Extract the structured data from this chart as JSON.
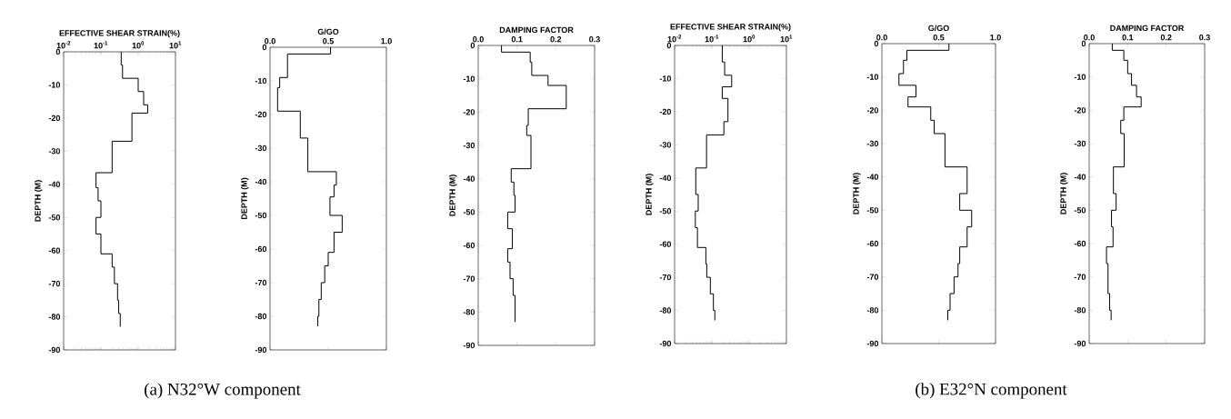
{
  "chart_data": [
    {
      "type": "line",
      "xlabel": "EFFECTIVE SHEAR STRAIN(%)",
      "ylabel": "DEPTH (M)",
      "log": "x",
      "xlim": [
        0.01,
        10
      ],
      "xticks": [
        {
          "value": 0.01,
          "label": "10$^{-2}$"
        },
        {
          "value": 0.1,
          "label": "10$^{-1}$"
        },
        {
          "value": 1,
          "label": "10$^{0}$"
        },
        {
          "value": 10,
          "label": "10$^{1}$"
        }
      ],
      "ylim": [
        -90,
        0
      ],
      "yticks": [
        0,
        -10,
        -20,
        -30,
        -40,
        -50,
        -60,
        -70,
        -80,
        -90
      ],
      "series": [
        {
          "color": "#000000",
          "x": [
            0.35,
            0.35,
            0.38,
            0.38,
            1.0,
            1.0,
            1.4,
            1.4,
            1.8,
            1.8,
            0.68,
            0.68,
            0.2,
            0.2,
            0.074,
            0.074,
            0.084,
            0.084,
            0.1,
            0.1,
            0.074,
            0.074,
            0.1,
            0.1,
            0.2,
            0.2,
            0.23,
            0.23,
            0.28,
            0.28,
            0.3,
            0.3,
            0.33,
            0.33
          ],
          "values": [
            0,
            -4,
            -4,
            -8,
            -8,
            -12,
            -12,
            -16,
            -16,
            -18.5,
            -18.5,
            -27,
            -27,
            -36.5,
            -36.5,
            -41,
            -41,
            -45,
            -45,
            -50,
            -50,
            -55,
            -55,
            -61,
            -61,
            -65,
            -65,
            -70,
            -70,
            -75,
            -75,
            -79,
            -79,
            -83
          ]
        }
      ]
    },
    {
      "type": "line",
      "xlabel": "G/GO",
      "ylabel": "DEPTH (M)",
      "xlim": [
        0,
        1
      ],
      "xticks": [
        {
          "value": 0,
          "label": "0.0"
        },
        0.5,
        {
          "value": 1,
          "label": "1.0"
        }
      ],
      "ylim": [
        -90,
        0
      ],
      "yticks": [
        0,
        -10,
        -20,
        -30,
        -40,
        -50,
        -60,
        -70,
        -80,
        -90
      ],
      "annotations": [
        "(a) N32°W component"
      ],
      "series": [
        {
          "color": "#000000",
          "x": [
            0.52,
            0.52,
            0.15,
            0.15,
            0.083,
            0.083,
            0.065,
            0.065,
            0.26,
            0.26,
            0.325,
            0.325,
            0.57,
            0.57,
            0.55,
            0.55,
            0.515,
            0.515,
            0.62,
            0.62,
            0.55,
            0.55,
            0.5,
            0.5,
            0.47,
            0.47,
            0.44,
            0.44,
            0.42,
            0.42,
            0.41,
            0.41
          ],
          "values": [
            0,
            -2,
            -2,
            -9,
            -9,
            -12,
            -12,
            -19,
            -19,
            -27,
            -27,
            -37,
            -37,
            -41,
            -41,
            -44.5,
            -44.5,
            -50,
            -50,
            -55,
            -55,
            -61,
            -61,
            -65,
            -65,
            -70,
            -70,
            -75,
            -75,
            -80,
            -80,
            -83
          ]
        }
      ]
    },
    {
      "type": "line",
      "xlabel": "DAMPING FACTOR",
      "ylabel": "DEPTH (M)",
      "xlim": [
        0,
        0.3
      ],
      "xticks": [
        {
          "value": 0,
          "label": "0.0"
        },
        0.1,
        0.2,
        0.3
      ],
      "ylim": [
        -90,
        0
      ],
      "yticks": [
        0,
        -10,
        -20,
        -30,
        -40,
        -50,
        -60,
        -70,
        -80,
        -90
      ],
      "series": [
        {
          "color": "#000000",
          "x": [
            0.06,
            0.06,
            0.134,
            0.134,
            0.138,
            0.138,
            0.18,
            0.18,
            0.227,
            0.227,
            0.129,
            0.129,
            0.125,
            0.125,
            0.136,
            0.136,
            0.085,
            0.085,
            0.092,
            0.092,
            0.095,
            0.095,
            0.076,
            0.076,
            0.088,
            0.088,
            0.076,
            0.076,
            0.082,
            0.082,
            0.09,
            0.09,
            0.095,
            0.095
          ],
          "values": [
            0,
            -2,
            -2,
            -5,
            -5,
            -9,
            -9,
            -12,
            -12,
            -19,
            -19,
            -24,
            -24,
            -27,
            -27,
            -37,
            -37,
            -41,
            -41,
            -45,
            -45,
            -50,
            -50,
            -55,
            -55,
            -61,
            -61,
            -65,
            -65,
            -70,
            -70,
            -75,
            -75,
            -83
          ]
        }
      ]
    },
    {
      "type": "line",
      "xlabel": "EFFECTIVE SHEAR STRAIN(%)",
      "ylabel": "DEPTH (M)",
      "log": "x",
      "xlim": [
        0.01,
        10
      ],
      "xticks": [
        {
          "value": 0.01,
          "label": "10$^{-2}$"
        },
        {
          "value": 0.1,
          "label": "10$^{-1}$"
        },
        {
          "value": 1,
          "label": "10$^{0}$"
        },
        {
          "value": 10,
          "label": "10$^{1}$"
        }
      ],
      "ylim": [
        -90,
        0
      ],
      "yticks": [
        0,
        -10,
        -20,
        -30,
        -40,
        -50,
        -60,
        -70,
        -80,
        -90
      ],
      "series": [
        {
          "color": "#000000",
          "x": [
            0.19,
            0.19,
            0.22,
            0.22,
            0.34,
            0.34,
            0.19,
            0.19,
            0.27,
            0.27,
            0.21,
            0.21,
            0.072,
            0.072,
            0.037,
            0.037,
            0.043,
            0.043,
            0.036,
            0.036,
            0.041,
            0.041,
            0.069,
            0.069,
            0.073,
            0.073,
            0.091,
            0.091,
            0.11,
            0.11,
            0.12,
            0.12
          ],
          "values": [
            0,
            -5,
            -5,
            -9,
            -9,
            -12.5,
            -12.5,
            -16,
            -16,
            -23,
            -23,
            -27,
            -27,
            -37,
            -37,
            -45,
            -45,
            -50,
            -50,
            -55,
            -55,
            -61,
            -61,
            -66,
            -66,
            -70,
            -70,
            -75,
            -75,
            -80,
            -80,
            -83
          ]
        }
      ]
    },
    {
      "type": "line",
      "xlabel": "G/GO",
      "ylabel": "DEPTH (M)",
      "xlim": [
        0,
        1
      ],
      "xticks": [
        {
          "value": 0,
          "label": "0.0"
        },
        0.5,
        {
          "value": 1,
          "label": "1.0"
        }
      ],
      "ylim": [
        -90,
        0
      ],
      "yticks": [
        0,
        -10,
        -20,
        -30,
        -40,
        -50,
        -60,
        -70,
        -80,
        -90
      ],
      "annotations": [
        "(b) E32°N component"
      ],
      "series": [
        {
          "color": "#000000",
          "x": [
            0.59,
            0.59,
            0.22,
            0.22,
            0.19,
            0.19,
            0.15,
            0.15,
            0.3,
            0.3,
            0.23,
            0.23,
            0.43,
            0.43,
            0.46,
            0.46,
            0.555,
            0.555,
            0.75,
            0.75,
            0.685,
            0.685,
            0.79,
            0.79,
            0.75,
            0.75,
            0.685,
            0.685,
            0.67,
            0.67,
            0.635,
            0.635,
            0.6,
            0.6,
            0.58,
            0.58
          ],
          "values": [
            0,
            -2,
            -2,
            -5,
            -5,
            -9,
            -9,
            -12.5,
            -12.5,
            -16,
            -16,
            -19,
            -19,
            -23,
            -23,
            -27,
            -27,
            -37,
            -37,
            -45,
            -45,
            -50,
            -50,
            -55,
            -55,
            -61,
            -61,
            -66,
            -66,
            -70,
            -70,
            -75,
            -75,
            -80,
            -80,
            -83
          ]
        }
      ]
    },
    {
      "type": "line",
      "xlabel": "DAMPING FACTOR",
      "ylabel": "DEPTH (M)",
      "xlim": [
        0,
        0.3
      ],
      "xticks": [
        {
          "value": 0,
          "label": "0.0"
        },
        0.1,
        0.2,
        0.3
      ],
      "ylim": [
        -90,
        0
      ],
      "yticks": [
        0,
        -10,
        -20,
        -30,
        -40,
        -50,
        -60,
        -70,
        -80,
        -90
      ],
      "series": [
        {
          "color": "#000000",
          "x": [
            0.06,
            0.06,
            0.09,
            0.09,
            0.1,
            0.1,
            0.11,
            0.11,
            0.123,
            0.123,
            0.135,
            0.135,
            0.09,
            0.09,
            0.082,
            0.082,
            0.091,
            0.091,
            0.063,
            0.063,
            0.07,
            0.07,
            0.058,
            0.058,
            0.062,
            0.062,
            0.045,
            0.045,
            0.049,
            0.049,
            0.053,
            0.053,
            0.057,
            0.057
          ],
          "values": [
            0,
            -2,
            -2,
            -5,
            -5,
            -9,
            -9,
            -12.5,
            -12.5,
            -16,
            -16,
            -19,
            -19,
            -23,
            -23,
            -27,
            -27,
            -37,
            -37,
            -45,
            -45,
            -50,
            -50,
            -55,
            -55,
            -61,
            -61,
            -66,
            -66,
            -75,
            -75,
            -80,
            -80,
            -83
          ]
        }
      ]
    }
  ]
}
